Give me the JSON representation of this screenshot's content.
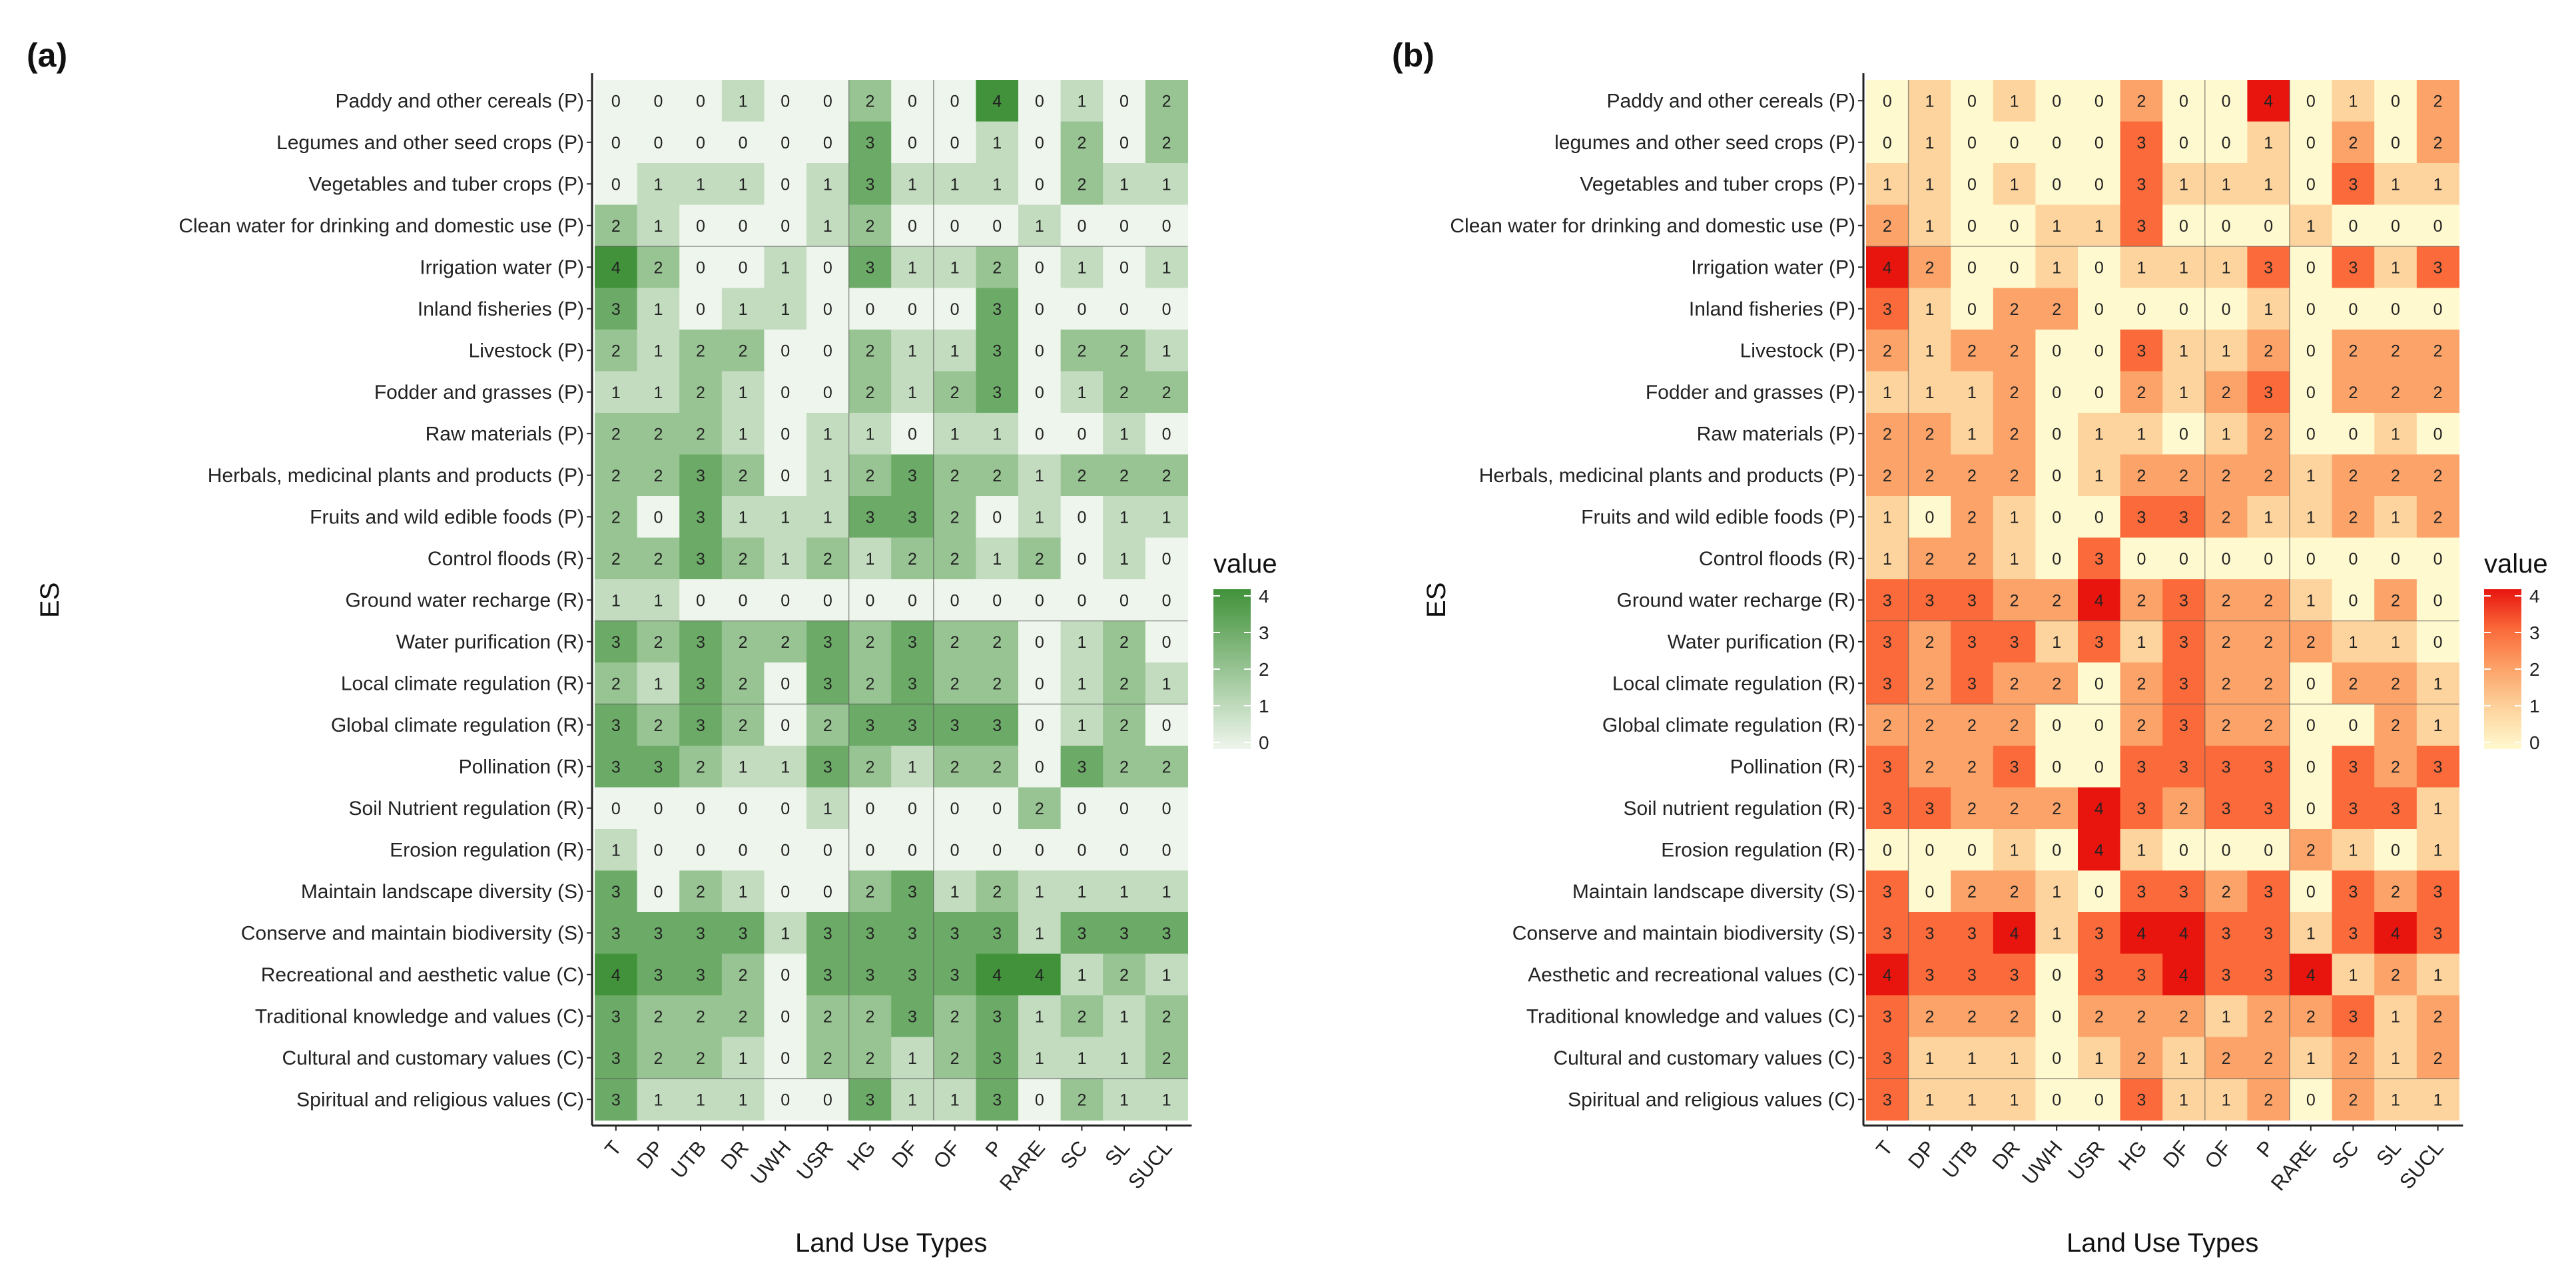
{
  "chart_data": [
    {
      "type": "heatmap",
      "panel_label": "(a)",
      "xlabel": "Land Use Types",
      "ylabel": "ES",
      "legend_title": "value",
      "legend_ticks": [
        "4",
        "3",
        "2",
        "1",
        "0"
      ],
      "value_range": [
        0,
        4
      ],
      "color_low": "#eef5ec",
      "color_high": "#41923a",
      "x": [
        "T",
        "DP",
        "UTB",
        "DR",
        "UWH",
        "USR",
        "HG",
        "DF",
        "OF",
        "P",
        "RARE",
        "SC",
        "SL",
        "SUCL"
      ],
      "y": [
        "Paddy and other cereals (P)",
        "Legumes and other seed crops (P)",
        "Vegetables and tuber crops (P)",
        "Clean water for drinking and domestic use (P)",
        "Irrigation water (P)",
        "Inland fisheries (P)",
        "Livestock (P)",
        "Fodder and grasses (P)",
        "Raw materials (P)",
        "Herbals, medicinal plants and products (P)",
        "Fruits and wild edible foods (P)",
        "Control floods (R)",
        "Ground water recharge (R)",
        "Water purification (R)",
        "Local climate regulation (R)",
        "Global climate regulation (R)",
        "Pollination (R)",
        "Soil Nutrient regulation (R)",
        "Erosion regulation (R)",
        "Maintain landscape diversity (S)",
        "Conserve and maintain biodiversity (S)",
        "Recreational and aesthetic value (C)",
        "Traditional knowledge and values (C)",
        "Cultural and customary values (C)",
        "Spiritual and religious values (C)"
      ],
      "values": [
        [
          0,
          0,
          0,
          1,
          0,
          0,
          2,
          0,
          0,
          4,
          0,
          1,
          0,
          2
        ],
        [
          0,
          0,
          0,
          0,
          0,
          0,
          3,
          0,
          0,
          1,
          0,
          2,
          0,
          2
        ],
        [
          0,
          1,
          1,
          1,
          0,
          1,
          3,
          1,
          1,
          1,
          0,
          2,
          1,
          1
        ],
        [
          2,
          1,
          0,
          0,
          0,
          1,
          2,
          0,
          0,
          0,
          1,
          0,
          0,
          0
        ],
        [
          4,
          2,
          0,
          0,
          1,
          0,
          3,
          1,
          1,
          2,
          0,
          1,
          0,
          1
        ],
        [
          3,
          1,
          0,
          1,
          1,
          0,
          0,
          0,
          0,
          3,
          0,
          0,
          0,
          0
        ],
        [
          2,
          1,
          2,
          2,
          0,
          0,
          2,
          1,
          1,
          3,
          0,
          2,
          2,
          1
        ],
        [
          1,
          1,
          2,
          1,
          0,
          0,
          2,
          1,
          2,
          3,
          0,
          1,
          2,
          2
        ],
        [
          2,
          2,
          2,
          1,
          0,
          1,
          1,
          0,
          1,
          1,
          0,
          0,
          1,
          0
        ],
        [
          2,
          2,
          3,
          2,
          0,
          1,
          2,
          3,
          2,
          2,
          1,
          2,
          2,
          2
        ],
        [
          2,
          0,
          3,
          1,
          1,
          1,
          3,
          3,
          2,
          0,
          1,
          0,
          1,
          1
        ],
        [
          2,
          2,
          3,
          2,
          1,
          2,
          1,
          2,
          2,
          1,
          2,
          0,
          1,
          0
        ],
        [
          1,
          1,
          0,
          0,
          0,
          0,
          0,
          0,
          0,
          0,
          0,
          0,
          0,
          0
        ],
        [
          3,
          2,
          3,
          2,
          2,
          3,
          2,
          3,
          2,
          2,
          0,
          1,
          2,
          0
        ],
        [
          2,
          1,
          3,
          2,
          0,
          3,
          2,
          3,
          2,
          2,
          0,
          1,
          2,
          1
        ],
        [
          3,
          2,
          3,
          2,
          0,
          2,
          3,
          3,
          3,
          3,
          0,
          1,
          2,
          0
        ],
        [
          3,
          3,
          2,
          1,
          1,
          3,
          2,
          1,
          2,
          2,
          0,
          3,
          2,
          2
        ],
        [
          0,
          0,
          0,
          0,
          0,
          1,
          0,
          0,
          0,
          0,
          2,
          0,
          0,
          0
        ],
        [
          1,
          0,
          0,
          0,
          0,
          0,
          0,
          0,
          0,
          0,
          0,
          0,
          0,
          0
        ],
        [
          3,
          0,
          2,
          1,
          0,
          0,
          2,
          3,
          1,
          2,
          1,
          1,
          1,
          1
        ],
        [
          3,
          3,
          3,
          3,
          1,
          3,
          3,
          3,
          3,
          3,
          1,
          3,
          3,
          3
        ],
        [
          4,
          3,
          3,
          2,
          0,
          3,
          3,
          3,
          3,
          4,
          4,
          1,
          2,
          1
        ],
        [
          3,
          2,
          2,
          2,
          0,
          2,
          2,
          3,
          2,
          3,
          1,
          2,
          1,
          2
        ],
        [
          3,
          2,
          2,
          1,
          0,
          2,
          2,
          1,
          2,
          3,
          1,
          1,
          1,
          2
        ],
        [
          3,
          1,
          1,
          1,
          0,
          0,
          3,
          1,
          1,
          3,
          0,
          2,
          1,
          1
        ]
      ]
    },
    {
      "type": "heatmap",
      "panel_label": "(b)",
      "xlabel": "Land Use Types",
      "ylabel": "ES",
      "legend_title": "value",
      "legend_ticks": [
        "4",
        "3",
        "2",
        "1",
        "0"
      ],
      "value_range": [
        0,
        4
      ],
      "color_low": "#fff9cf",
      "color_high": "#e8150f",
      "x": [
        "T",
        "DP",
        "UTB",
        "DR",
        "UWH",
        "USR",
        "HG",
        "DF",
        "OF",
        "P",
        "RARE",
        "SC",
        "SL",
        "SUCL"
      ],
      "y": [
        "Paddy and other cereals (P)",
        "legumes and other seed crops (P)",
        "Vegetables and tuber crops (P)",
        "Clean water for drinking and domestic use (P)",
        "Irrigation water (P)",
        "Inland fisheries (P)",
        "Livestock (P)",
        "Fodder and grasses (P)",
        "Raw materials (P)",
        "Herbals, medicinal plants and products (P)",
        "Fruits and wild edible foods (P)",
        "Control floods (R)",
        "Ground water recharge (R)",
        "Water purification (R)",
        "Local climate regulation (R)",
        "Global climate regulation (R)",
        "Pollination (R)",
        "Soil nutrient regulation (R)",
        "Erosion regulation (R)",
        "Maintain landscape diversity (S)",
        "Conserve and maintain biodiversity (S)",
        "Aesthetic and recreational values (C)",
        "Traditional knowledge and values (C)",
        "Cultural and customary values (C)",
        "Spiritual and religious values (C)"
      ],
      "values": [
        [
          0,
          1,
          0,
          1,
          0,
          0,
          2,
          0,
          0,
          4,
          0,
          1,
          0,
          2
        ],
        [
          0,
          1,
          0,
          0,
          0,
          0,
          3,
          0,
          0,
          1,
          0,
          2,
          0,
          2
        ],
        [
          1,
          1,
          0,
          1,
          0,
          0,
          3,
          1,
          1,
          1,
          0,
          3,
          1,
          1
        ],
        [
          2,
          1,
          0,
          0,
          1,
          1,
          3,
          0,
          0,
          0,
          1,
          0,
          0,
          0
        ],
        [
          4,
          2,
          0,
          0,
          1,
          0,
          1,
          1,
          1,
          3,
          0,
          3,
          1,
          3
        ],
        [
          3,
          1,
          0,
          2,
          2,
          0,
          0,
          0,
          0,
          1,
          0,
          0,
          0,
          0
        ],
        [
          2,
          1,
          2,
          2,
          0,
          0,
          3,
          1,
          1,
          2,
          0,
          2,
          2,
          2
        ],
        [
          1,
          1,
          1,
          2,
          0,
          0,
          2,
          1,
          2,
          3,
          0,
          2,
          2,
          2
        ],
        [
          2,
          2,
          1,
          2,
          0,
          1,
          1,
          0,
          1,
          2,
          0,
          0,
          1,
          0
        ],
        [
          2,
          2,
          2,
          2,
          0,
          1,
          2,
          2,
          2,
          2,
          1,
          2,
          2,
          2
        ],
        [
          1,
          0,
          2,
          1,
          0,
          0,
          3,
          3,
          2,
          1,
          1,
          2,
          1,
          2
        ],
        [
          1,
          2,
          2,
          1,
          0,
          3,
          0,
          0,
          0,
          0,
          0,
          0,
          0,
          0
        ],
        [
          3,
          3,
          3,
          2,
          2,
          4,
          2,
          3,
          2,
          2,
          1,
          0,
          2,
          0
        ],
        [
          3,
          2,
          3,
          3,
          1,
          3,
          1,
          3,
          2,
          2,
          2,
          1,
          1,
          0
        ],
        [
          3,
          2,
          3,
          2,
          2,
          0,
          2,
          3,
          2,
          2,
          0,
          2,
          2,
          1
        ],
        [
          2,
          2,
          2,
          2,
          0,
          0,
          2,
          3,
          2,
          2,
          0,
          0,
          2,
          1
        ],
        [
          3,
          2,
          2,
          3,
          0,
          0,
          3,
          3,
          3,
          3,
          0,
          3,
          2,
          3
        ],
        [
          3,
          3,
          2,
          2,
          2,
          4,
          3,
          2,
          3,
          3,
          0,
          3,
          3,
          1
        ],
        [
          0,
          0,
          0,
          1,
          0,
          4,
          1,
          0,
          0,
          0,
          2,
          1,
          0,
          1
        ],
        [
          3,
          0,
          2,
          2,
          1,
          0,
          3,
          3,
          2,
          3,
          0,
          3,
          2,
          3
        ],
        [
          3,
          3,
          3,
          4,
          1,
          3,
          4,
          4,
          3,
          3,
          1,
          3,
          4,
          3
        ],
        [
          4,
          3,
          3,
          3,
          0,
          3,
          3,
          4,
          3,
          3,
          4,
          1,
          2,
          1
        ],
        [
          3,
          2,
          2,
          2,
          0,
          2,
          2,
          2,
          1,
          2,
          2,
          3,
          1,
          2
        ],
        [
          3,
          1,
          1,
          1,
          0,
          1,
          2,
          1,
          2,
          2,
          1,
          2,
          1,
          2
        ],
        [
          3,
          1,
          1,
          1,
          0,
          0,
          3,
          1,
          1,
          2,
          0,
          2,
          1,
          1
        ]
      ]
    }
  ]
}
